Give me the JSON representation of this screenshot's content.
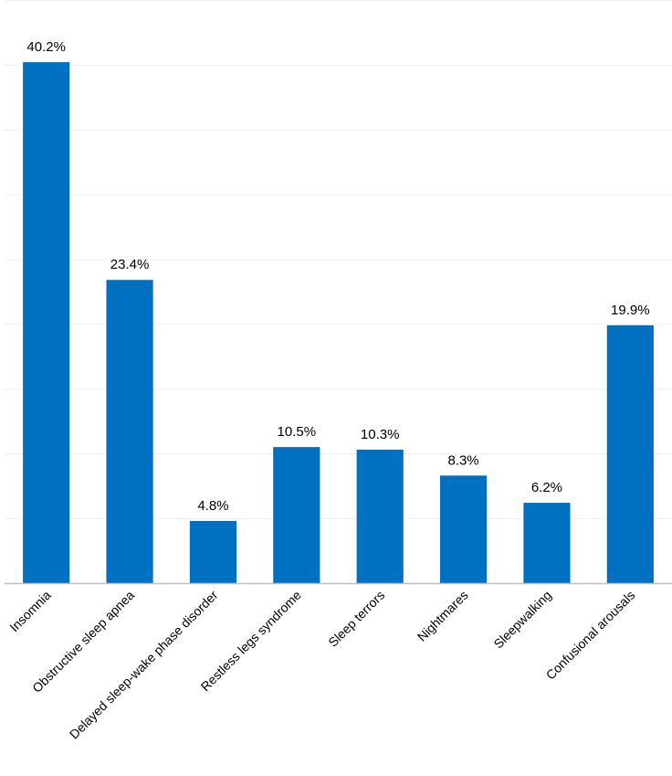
{
  "chart_data": {
    "type": "bar",
    "title": "",
    "xlabel": "",
    "ylabel": "",
    "categories": [
      "Insomnia",
      "Obstructive sleep apnea",
      "Delayed sleep-wake phase disorder",
      "Restless legs syndrome",
      "Sleep terrors",
      "Nightmares",
      "Sleepwalking",
      "Confusional arousals"
    ],
    "values": [
      40.2,
      23.4,
      4.8,
      10.5,
      10.3,
      8.3,
      6.2,
      19.9
    ],
    "data_labels": [
      "40.2%",
      "23.4%",
      "4.8%",
      "10.5%",
      "10.3%",
      "8.3%",
      "6.2%",
      "19.9%"
    ],
    "ylim": [
      0,
      45
    ],
    "grid_step": 5,
    "grid": true,
    "y_axis_visible": false,
    "legend": "none",
    "bar_color": "#0070C0",
    "grid_color": "#EDEDED",
    "axis_color": "#BFBFBF"
  }
}
